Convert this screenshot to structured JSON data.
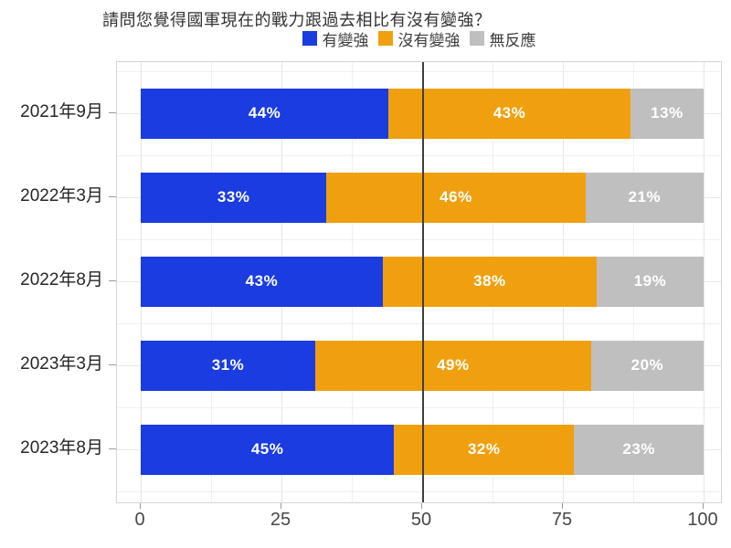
{
  "chart_data": {
    "type": "bar",
    "orientation": "horizontal",
    "stacked": true,
    "title": "請問您覺得國軍現在的戰力跟過去相比有沒有變強？",
    "categories": [
      "2021年9月",
      "2022年3月",
      "2022年8月",
      "2023年3月",
      "2023年8月"
    ],
    "series": [
      {
        "name": "有變強",
        "color": "#1a3ce0",
        "values": [
          44,
          33,
          43,
          31,
          45
        ]
      },
      {
        "name": "沒有變強",
        "color": "#f0a00f",
        "values": [
          43,
          46,
          38,
          49,
          32
        ]
      },
      {
        "name": "無反應",
        "color": "#bfbfbf",
        "values": [
          13,
          21,
          19,
          20,
          23
        ]
      }
    ],
    "value_suffix": "%",
    "value_label_color": "#ffffff",
    "xlim": [
      0,
      100
    ],
    "x_ticks": [
      0,
      25,
      50,
      75,
      100
    ],
    "minor_grid_step": 12.5,
    "reference_line": {
      "x": 50,
      "color": "#3f3f3f"
    },
    "legend_position": "top",
    "grid": true
  }
}
